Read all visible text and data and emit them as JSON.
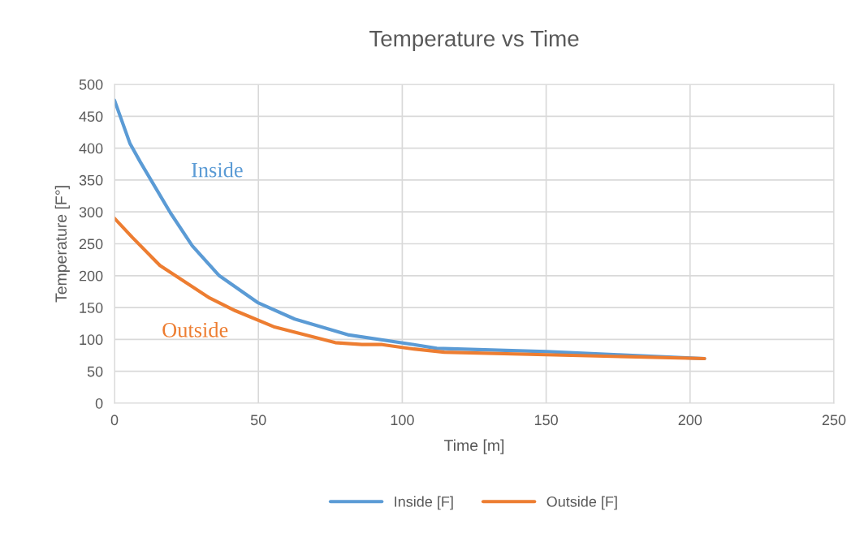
{
  "chart_data": {
    "type": "line",
    "title": "Temperature vs Time",
    "xlabel": "Time [m]",
    "ylabel": "Temperature [F°]",
    "series": [
      {
        "name": "Inside [F]",
        "color": "#5b9bd5",
        "x": [
          0,
          5.4,
          9,
          19.5,
          27,
          36.4,
          49.7,
          62.6,
          81.5,
          104,
          112,
          150,
          175,
          205
        ],
        "values": [
          475,
          407,
          378,
          298,
          247,
          200,
          158,
          132,
          107,
          92,
          86,
          81,
          76,
          70
        ]
      },
      {
        "name": "Outside [F]",
        "color": "#ed7d31",
        "x": [
          0,
          6.2,
          15.8,
          32.7,
          42,
          55.3,
          76.7,
          86,
          93,
          104,
          114.6,
          150,
          205
        ],
        "values": [
          290,
          260,
          216,
          166,
          145,
          120,
          95,
          92,
          92,
          85,
          80,
          76,
          70
        ]
      }
    ],
    "annotations": [
      "Inside",
      "Outside"
    ],
    "xlim": [
      0,
      250
    ],
    "xticks": [
      0,
      50,
      100,
      150,
      200,
      250
    ],
    "ylim": [
      0,
      500
    ],
    "yticks": [
      0,
      50,
      100,
      150,
      200,
      250,
      300,
      350,
      400,
      450,
      500
    ],
    "grid": true,
    "legend": "bottom",
    "line_style": "solid",
    "marker": "none"
  }
}
